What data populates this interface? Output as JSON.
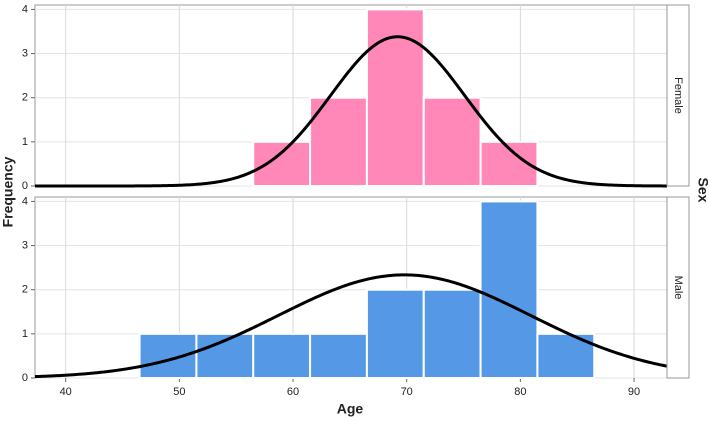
{
  "chart_data": {
    "type": "histogram",
    "x_label": "Age",
    "y_label": "Frequency",
    "facet_title": "Sex",
    "xlim": [
      37.3,
      92.9
    ],
    "xticks": [
      40,
      50,
      60,
      70,
      80,
      90
    ],
    "ylim": [
      0,
      4.1
    ],
    "yticks": [
      0,
      1,
      2,
      3,
      4
    ],
    "grid": true,
    "curve_color": "#000000",
    "facets": [
      {
        "name": "Female",
        "color": "#ff88b8",
        "bins": [
          56.5,
          61.5,
          66.5,
          71.5,
          76.5,
          81.5
        ],
        "values": [
          1,
          2,
          4,
          2,
          1
        ],
        "curve": {
          "mean": 69.2,
          "sd": 5.9
        }
      },
      {
        "name": "Male",
        "color": "#5599e6",
        "bins": [
          46.5,
          51.5,
          56.5,
          61.5,
          66.5,
          71.5,
          76.5,
          81.5,
          86.5
        ],
        "values": [
          1,
          1,
          1,
          1,
          2,
          2,
          4,
          1
        ],
        "curve": {
          "mean": 69.8,
          "sd": 11.1
        }
      }
    ]
  }
}
